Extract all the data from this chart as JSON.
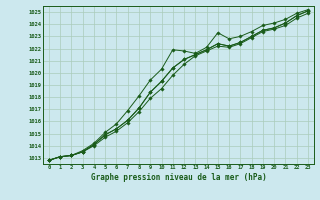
{
  "title": "Graphe pression niveau de la mer (hPa)",
  "xlabel_hours": [
    0,
    1,
    2,
    3,
    4,
    5,
    6,
    7,
    8,
    9,
    10,
    11,
    12,
    13,
    14,
    15,
    16,
    17,
    18,
    19,
    20,
    21,
    22,
    23
  ],
  "ylim": [
    1012.5,
    1025.5
  ],
  "yticks": [
    1013,
    1014,
    1015,
    1016,
    1017,
    1018,
    1019,
    1020,
    1021,
    1022,
    1023,
    1024,
    1025
  ],
  "bg_color": "#cce8ee",
  "grid_color": "#aaccbb",
  "line_color": "#1a5c1a",
  "line1": [
    1012.8,
    1013.1,
    1013.2,
    1013.5,
    1014.1,
    1014.9,
    1015.4,
    1016.1,
    1017.1,
    1018.4,
    1019.3,
    1020.4,
    1021.1,
    1021.5,
    1021.9,
    1022.4,
    1022.2,
    1022.5,
    1023.0,
    1023.5,
    1023.7,
    1024.1,
    1024.7,
    1025.1
  ],
  "line2": [
    1012.8,
    1013.1,
    1013.2,
    1013.5,
    1014.1,
    1014.9,
    1015.4,
    1016.1,
    1017.1,
    1018.4,
    1019.3,
    1020.4,
    1021.1,
    1021.5,
    1021.9,
    1022.4,
    1022.2,
    1022.5,
    1023.0,
    1023.5,
    1023.7,
    1024.1,
    1024.7,
    1025.1
  ],
  "line3_diverge": [
    1012.8,
    1013.1,
    1013.2,
    1013.6,
    1014.2,
    1015.1,
    1015.8,
    1016.9,
    1018.1,
    1019.4,
    1020.3,
    1021.9,
    1021.8,
    1021.6,
    1022.1,
    1023.3,
    1022.8,
    1023.0,
    1023.4,
    1023.9,
    1024.1,
    1024.4,
    1024.9,
    1025.2
  ],
  "line4_low": [
    1012.8,
    1013.1,
    1013.2,
    1013.5,
    1014.0,
    1014.7,
    1015.2,
    1015.9,
    1016.8,
    1017.9,
    1018.7,
    1019.8,
    1020.7,
    1021.4,
    1021.8,
    1022.2,
    1022.1,
    1022.4,
    1022.9,
    1023.4,
    1023.6,
    1023.9,
    1024.5,
    1024.9
  ]
}
